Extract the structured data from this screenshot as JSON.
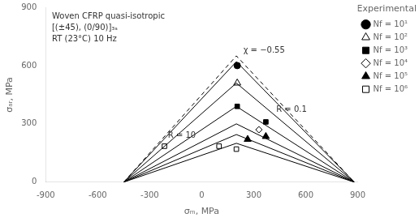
{
  "chart_data": {
    "type": "scatter",
    "title": "Woven CFRP quasi-isotropic\n[(±45), (0/90)]₃ₛ\nRT (23°C) 10 Hz",
    "xlabel": "σₘ, MPa",
    "ylabel": "σₐᵣ, MPa",
    "xlim": [
      -900,
      900
    ],
    "ylim": [
      0,
      900
    ],
    "xticks": [
      -900,
      -600,
      -300,
      0,
      300,
      600,
      900
    ],
    "yticks": [
      0,
      300,
      600,
      900
    ],
    "grid": false,
    "legend": "right",
    "legend_title": "Experimental",
    "series": [
      {
        "type": "line",
        "color": "black",
        "line_style": "solid",
        "x": [
          -450,
          200,
          880
        ],
        "values": [
          0,
          620,
          0
        ]
      },
      {
        "type": "line",
        "color": "black",
        "line_style": "solid",
        "x": [
          -450,
          200,
          880
        ],
        "values": [
          0,
          510,
          0
        ]
      },
      {
        "type": "line",
        "color": "black",
        "line_style": "solid",
        "x": [
          -450,
          200,
          880
        ],
        "values": [
          0,
          390,
          0
        ]
      },
      {
        "type": "line",
        "color": "black",
        "line_style": "solid",
        "x": [
          -450,
          200,
          880
        ],
        "values": [
          0,
          300,
          0
        ]
      },
      {
        "type": "line",
        "color": "black",
        "line_style": "solid",
        "x": [
          -450,
          200,
          880
        ],
        "values": [
          0,
          245,
          0
        ]
      },
      {
        "type": "line",
        "color": "black",
        "line_style": "solid",
        "x": [
          -450,
          200,
          880
        ],
        "values": [
          0,
          200,
          0
        ]
      },
      {
        "type": "line",
        "color": "black",
        "line_style": "dashed",
        "x": [
          -450,
          200,
          880
        ],
        "values": [
          0,
          650,
          0
        ]
      },
      {
        "name": "Nf = 10¹",
        "type": "scatter",
        "color": "black",
        "marker": "circle",
        "x": [
          205
        ],
        "values": [
          600
        ]
      },
      {
        "name": "Nf = 10²",
        "type": "scatter",
        "color": "black",
        "marker": "triangle-open",
        "x": [
          205
        ],
        "values": [
          510
        ]
      },
      {
        "name": "Nf = 10³",
        "type": "scatter",
        "color": "black",
        "marker": "square",
        "x": [
          205,
          370
        ],
        "values": [
          390,
          310
        ]
      },
      {
        "name": "Nf = 10⁴",
        "type": "scatter",
        "color": "black",
        "marker": "diamond-open",
        "x": [
          330
        ],
        "values": [
          270
        ]
      },
      {
        "name": "Nf = 10⁵",
        "type": "scatter",
        "color": "black",
        "marker": "triangle",
        "x": [
          265,
          370
        ],
        "values": [
          220,
          235
        ]
      },
      {
        "name": "Nf = 10⁶",
        "type": "scatter",
        "color": "black",
        "marker": "square-open",
        "x": [
          -215,
          100,
          200
        ],
        "values": [
          185,
          185,
          170
        ]
      }
    ],
    "annotations": [
      {
        "text": "χ = −0.55",
        "x": 240,
        "y": 655
      },
      {
        "text": "R = 10",
        "x": -195,
        "y": 218
      },
      {
        "text": "R = 0.1",
        "x": 430,
        "y": 350
      }
    ]
  }
}
